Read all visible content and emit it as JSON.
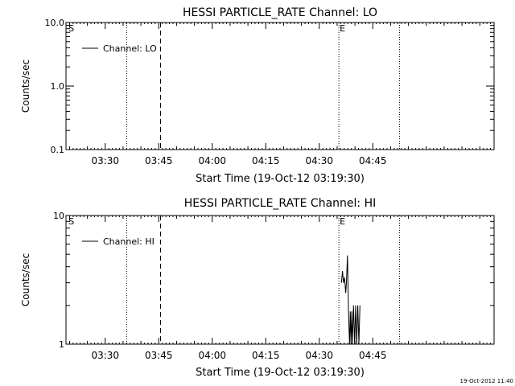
{
  "footer_stamp": "19-Oct-2012 11:40",
  "chart_data": [
    {
      "type": "line",
      "title": "HESSI PARTICLE_RATE Channel: LO",
      "xlabel": "Start Time (19-Oct-12 03:19:30)",
      "ylabel": "Counts/sec",
      "yscale": "log",
      "ylim": [
        0.1,
        10.0
      ],
      "xlim_minutes": [
        0,
        120
      ],
      "x_ticks": [
        {
          "minute": 11,
          "label": "03:30"
        },
        {
          "minute": 26,
          "label": "03:45"
        },
        {
          "minute": 41,
          "label": "04:00"
        },
        {
          "minute": 56,
          "label": "04:15"
        },
        {
          "minute": 71,
          "label": "04:30"
        },
        {
          "minute": 86,
          "label": "04:45"
        }
      ],
      "y_ticks": [
        {
          "value": 0.1,
          "label": "0.1"
        },
        {
          "value": 1.0,
          "label": "1.0"
        },
        {
          "value": 10.0,
          "label": "10.0"
        }
      ],
      "legend": {
        "position": "top-left",
        "label": "Channel: LO"
      },
      "markers": [
        {
          "minute": 0.5,
          "label": "S"
        },
        {
          "minute": 76.5,
          "label": "E"
        }
      ],
      "vlines": [
        {
          "minute": 17,
          "style": "dotted"
        },
        {
          "minute": 26.5,
          "style": "dashed"
        },
        {
          "minute": 76.5,
          "style": "dotted"
        },
        {
          "minute": 93.5,
          "style": "dotted"
        }
      ],
      "series": [
        {
          "x": [],
          "y": []
        }
      ]
    },
    {
      "type": "line",
      "title": "HESSI PARTICLE_RATE Channel: HI",
      "xlabel": "Start Time (19-Oct-12 03:19:30)",
      "ylabel": "Counts/sec",
      "yscale": "log",
      "ylim": [
        1,
        10
      ],
      "xlim_minutes": [
        0,
        120
      ],
      "x_ticks": [
        {
          "minute": 11,
          "label": "03:30"
        },
        {
          "minute": 26,
          "label": "03:45"
        },
        {
          "minute": 41,
          "label": "04:00"
        },
        {
          "minute": 56,
          "label": "04:15"
        },
        {
          "minute": 71,
          "label": "04:30"
        },
        {
          "minute": 86,
          "label": "04:45"
        }
      ],
      "y_ticks": [
        {
          "value": 1,
          "label": "1"
        },
        {
          "value": 10,
          "label": "10"
        }
      ],
      "legend": {
        "position": "top-left",
        "label": "Channel: HI"
      },
      "markers": [
        {
          "minute": 0.5,
          "label": "S"
        },
        {
          "minute": 76.5,
          "label": "E"
        }
      ],
      "vlines": [
        {
          "minute": 17,
          "style": "dotted"
        },
        {
          "minute": 26.5,
          "style": "dashed"
        },
        {
          "minute": 76.5,
          "style": "dotted"
        },
        {
          "minute": 93.5,
          "style": "dotted"
        }
      ],
      "series": [
        {
          "x": [
            77.2,
            77.5,
            77.8,
            78.1,
            78.4,
            78.6,
            78.9,
            79.2,
            79.5,
            79.7,
            79.9,
            80.1,
            80.3,
            80.6,
            80.9,
            81.2,
            81.5,
            81.8,
            82.1,
            82.4
          ],
          "y": [
            3.0,
            3.7,
            3.0,
            3.3,
            2.5,
            3.0,
            4.9,
            1.8,
            1.0,
            1.8,
            1.0,
            1.8,
            1.0,
            2.0,
            1.0,
            2.0,
            1.0,
            2.0,
            1.0,
            2.0
          ]
        }
      ]
    }
  ]
}
